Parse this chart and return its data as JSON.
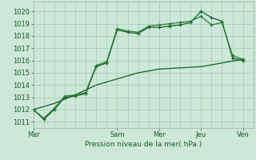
{
  "xlabel": "Pression niveau de la mer( hPa )",
  "background_color": "#cce8d8",
  "grid_color": "#99ccaa",
  "line_color1": "#1a5c28",
  "line_color2": "#2d7a3a",
  "line_color3": "#1a5c28",
  "ylim": [
    1010.5,
    1020.8
  ],
  "yticks": [
    1011,
    1012,
    1013,
    1014,
    1015,
    1016,
    1017,
    1018,
    1019,
    1020
  ],
  "day_labels": [
    "Mar",
    "Sam",
    "Mer",
    "Jeu",
    "Ven"
  ],
  "day_positions": [
    0,
    48,
    72,
    96,
    120
  ],
  "xlim": [
    0,
    126
  ],
  "series1_x": [
    0,
    6,
    12,
    18,
    24,
    30,
    36,
    42,
    48,
    54,
    60,
    66,
    72,
    78,
    84,
    90,
    96,
    102,
    108,
    114,
    120
  ],
  "series1_y": [
    1012.0,
    1011.2,
    1012.0,
    1013.0,
    1013.1,
    1013.3,
    1015.5,
    1015.8,
    1018.5,
    1018.3,
    1018.2,
    1018.7,
    1018.7,
    1018.8,
    1018.9,
    1019.1,
    1020.0,
    1019.5,
    1019.2,
    1016.2,
    1016.0
  ],
  "series2_x": [
    0,
    6,
    12,
    18,
    24,
    30,
    36,
    42,
    48,
    54,
    60,
    66,
    72,
    78,
    84,
    90,
    96,
    102,
    108,
    114,
    120
  ],
  "series2_y": [
    1012.0,
    1011.3,
    1012.1,
    1013.1,
    1013.2,
    1013.4,
    1015.6,
    1015.9,
    1018.6,
    1018.4,
    1018.3,
    1018.8,
    1018.9,
    1019.0,
    1019.1,
    1019.2,
    1019.6,
    1018.9,
    1019.1,
    1016.4,
    1016.1
  ],
  "series3_x": [
    0,
    12,
    24,
    36,
    48,
    60,
    72,
    84,
    96,
    108,
    120
  ],
  "series3_y": [
    1012.0,
    1012.5,
    1013.2,
    1014.0,
    1014.5,
    1015.0,
    1015.3,
    1015.4,
    1015.5,
    1015.8,
    1016.1
  ]
}
